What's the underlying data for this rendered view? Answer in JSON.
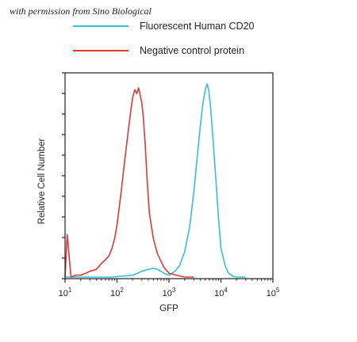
{
  "watermark": "with permission from Sino Biological",
  "chart_data": {
    "type": "line",
    "xlabel": "GFP",
    "ylabel": "Relative Cell Number",
    "x_scale": "log",
    "xlim": [
      10,
      100000
    ],
    "ylim": [
      0,
      1
    ],
    "x_ticks": [
      {
        "value": 10,
        "mantissa": "10",
        "exp": "1"
      },
      {
        "value": 100,
        "mantissa": "10",
        "exp": "2"
      },
      {
        "value": 1000,
        "mantissa": "10",
        "exp": "3"
      },
      {
        "value": 10000,
        "mantissa": "10",
        "exp": "4"
      },
      {
        "value": 100000,
        "mantissa": "10",
        "exp": "5"
      }
    ],
    "legend_position": "top",
    "series": [
      {
        "name": "Fluorescent Human CD20",
        "color": "#38bde0",
        "x": [
          10,
          80,
          200,
          300,
          400,
          500,
          600,
          800,
          1000,
          1300,
          1600,
          2000,
          2500,
          3000,
          3500,
          4000,
          4500,
          5000,
          5400,
          5800,
          6300,
          7000,
          8000,
          9000,
          10000,
          12000,
          14000,
          17000,
          20000,
          25000,
          30000
        ],
        "y": [
          0.0,
          0.0,
          0.01,
          0.03,
          0.04,
          0.045,
          0.04,
          0.02,
          0.01,
          0.03,
          0.06,
          0.13,
          0.26,
          0.44,
          0.62,
          0.78,
          0.9,
          0.97,
          1.0,
          0.97,
          0.88,
          0.72,
          0.5,
          0.3,
          0.15,
          0.06,
          0.02,
          0.005,
          0.0,
          0.0,
          0.0
        ]
      },
      {
        "name": "Negative control protein",
        "color": "#dc3a3a",
        "x": [
          10,
          11,
          13,
          16,
          20,
          25,
          30,
          40,
          50,
          60,
          70,
          80,
          90,
          100,
          120,
          140,
          160,
          180,
          200,
          220,
          240,
          260,
          280,
          300,
          320,
          350,
          380,
          420,
          500,
          600,
          800,
          1000,
          1400,
          2000,
          3000
        ],
        "y": [
          0.0,
          0.22,
          0.0,
          0.01,
          0.01,
          0.02,
          0.03,
          0.04,
          0.07,
          0.09,
          0.11,
          0.15,
          0.2,
          0.27,
          0.44,
          0.6,
          0.73,
          0.84,
          0.93,
          0.97,
          0.95,
          0.98,
          0.94,
          0.9,
          0.83,
          0.68,
          0.5,
          0.33,
          0.2,
          0.12,
          0.05,
          0.02,
          0.01,
          0.0,
          0.0
        ]
      }
    ]
  }
}
